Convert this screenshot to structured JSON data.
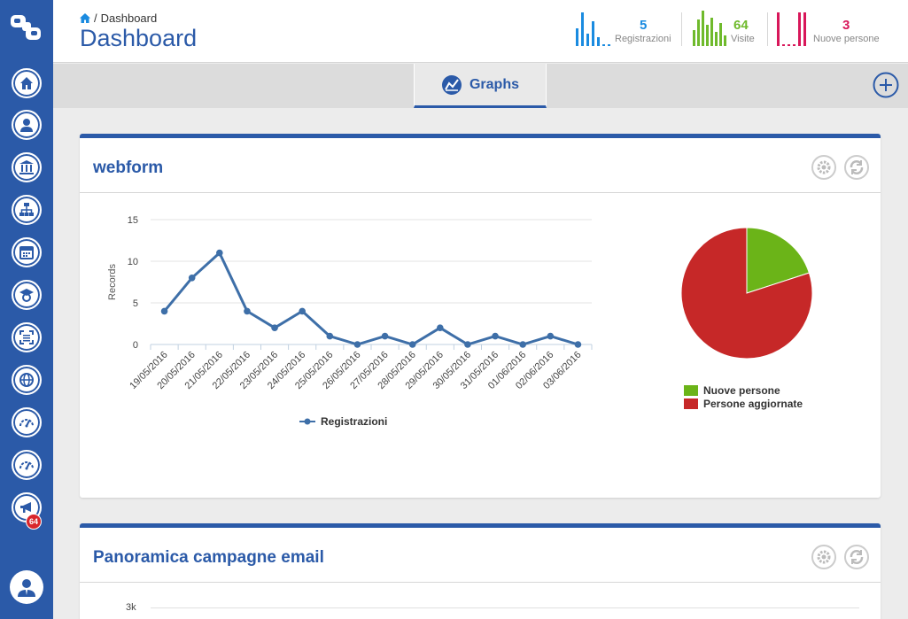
{
  "breadcrumb": {
    "separator": "/",
    "current": "Dashboard"
  },
  "page_title": "Dashboard",
  "stats": [
    {
      "value": "5",
      "label": "Registrazioni",
      "color": "#1a8be0"
    },
    {
      "value": "64",
      "label": "Visite",
      "color": "#6fba2c"
    },
    {
      "value": "3",
      "label": "Nuove persone",
      "color": "#d8175a"
    }
  ],
  "tabs": [
    {
      "label": "Graphs"
    }
  ],
  "sidebar": {
    "items": [
      {
        "icon": "home-icon"
      },
      {
        "icon": "user-icon"
      },
      {
        "icon": "bank-icon"
      },
      {
        "icon": "hierarchy-icon"
      },
      {
        "icon": "calendar-icon"
      },
      {
        "icon": "graduation-icon"
      },
      {
        "icon": "scan-icon"
      },
      {
        "icon": "globe-icon"
      },
      {
        "icon": "gauge-icon"
      },
      {
        "icon": "gauge-icon"
      },
      {
        "icon": "megaphone-icon"
      }
    ],
    "notification_badge": "64"
  },
  "panels": [
    {
      "title": "webform"
    },
    {
      "title": "Panoramica campagne email"
    }
  ],
  "chart_data": [
    {
      "type": "line",
      "title": "",
      "xlabel": "",
      "ylabel": "Records",
      "ylim": [
        0,
        15
      ],
      "yticks": [
        "0",
        "5",
        "10",
        "15"
      ],
      "categories": [
        "19/05/2016",
        "20/05/2016",
        "21/05/2016",
        "22/05/2016",
        "23/05/2016",
        "24/05/2016",
        "25/05/2016",
        "26/05/2016",
        "27/05/2016",
        "28/05/2016",
        "29/05/2016",
        "30/05/2016",
        "31/05/2016",
        "01/06/2016",
        "02/06/2016",
        "03/06/2016"
      ],
      "series": [
        {
          "name": "Registrazioni",
          "color": "#3e6fa8",
          "values": [
            4,
            8,
            11,
            4,
            2,
            4,
            1,
            0,
            1,
            0,
            2,
            0,
            1,
            0,
            1,
            0
          ]
        }
      ],
      "legend": "bottom"
    },
    {
      "type": "pie",
      "labels": [
        "Nuove persone",
        "Persone aggiornate"
      ],
      "values": [
        20,
        80
      ],
      "colors": [
        "#6bb418",
        "#c62828"
      ],
      "legend": "bottom"
    },
    {
      "type": "line",
      "yticks": [
        "3k"
      ],
      "note": "partially visible"
    }
  ]
}
